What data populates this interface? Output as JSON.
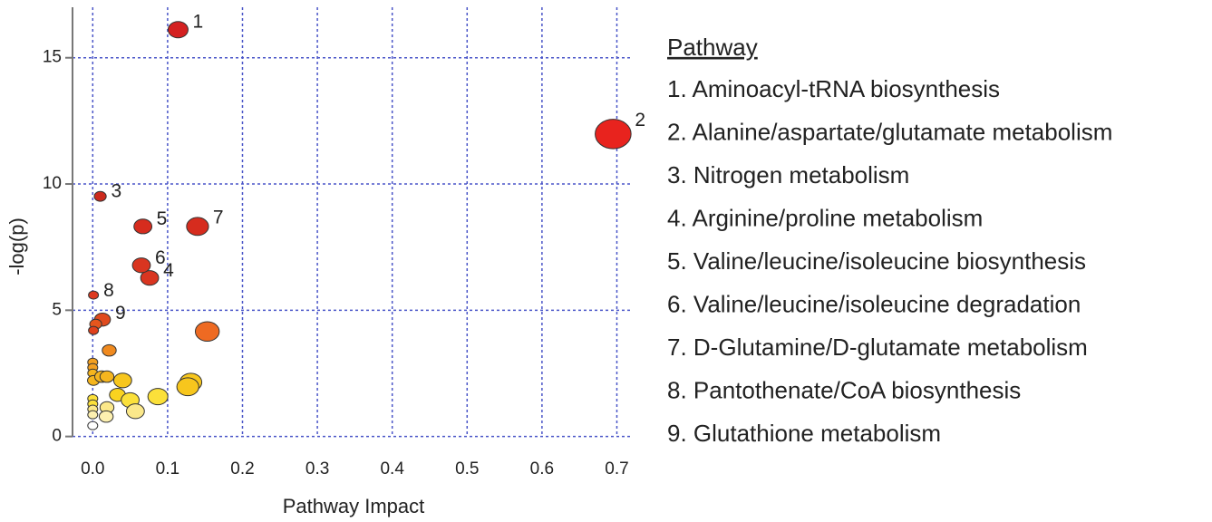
{
  "chart_data": {
    "type": "scatter",
    "xlabel": "Pathway Impact",
    "ylabel": "-log(p)",
    "xlim": [
      -0.027,
      0.72
    ],
    "ylim": [
      -0.3,
      17
    ],
    "xticks": [
      {
        "value": 0,
        "label": "0.0"
      },
      0.1,
      0.2,
      0.3,
      0.4,
      0.5,
      0.6,
      0.7
    ],
    "yticks": [
      0,
      5,
      10,
      15
    ],
    "grid": true,
    "grid_color": "#4a55c8",
    "x": [
      0.114,
      0.695,
      0.01,
      0.076,
      0.067,
      0.065,
      0.14,
      0.001,
      0.013,
      0.004,
      0.001,
      0.153,
      0.022,
      0,
      0,
      0,
      0.001,
      0.012,
      0.019,
      0.04,
      0.131,
      0.127,
      0.033,
      0.05,
      0.087,
      0,
      0,
      0.019,
      0.057,
      0,
      0.018,
      0,
      0
    ],
    "values": [
      16.11,
      11.98,
      9.51,
      6.28,
      8.32,
      6.78,
      8.32,
      5.6,
      4.63,
      4.45,
      4.2,
      4.16,
      3.41,
      2.94,
      2.73,
      2.51,
      2.22,
      2.37,
      2.37,
      2.22,
      2.15,
      1.97,
      1.65,
      1.44,
      1.58,
      1.5,
      1.29,
      1.15,
      1.0,
      1.08,
      0.79,
      0.86,
      0.43
    ],
    "sizes": [
      10,
      18,
      6,
      9,
      9,
      9,
      11,
      5,
      8,
      6,
      5,
      12,
      7,
      5,
      5,
      5,
      6,
      7,
      7,
      9,
      11,
      11,
      8,
      9,
      10,
      5,
      5,
      7,
      9,
      5,
      7,
      5,
      5
    ],
    "colors": [
      "#d42020",
      "#e8231e",
      "#cc2a1d",
      "#d93520",
      "#d62c1e",
      "#d93520",
      "#d62c1e",
      "#dd3a20",
      "#e04a1e",
      "#e5561d",
      "#e0401c",
      "#ee6a22",
      "#f08a1f",
      "#f3a020",
      "#f3a020",
      "#f5b51e",
      "#f5b51e",
      "#f5b51e",
      "#f5b51e",
      "#f7c61d",
      "#f7c61d",
      "#f7c61d",
      "#f9d31f",
      "#fbe03a",
      "#fbe03a",
      "#fbe03a",
      "#fbe03a",
      "#fbe88a",
      "#fbe88a",
      "#fbe88a",
      "#fdf0b0",
      "#fdf0b0",
      "#ffffff"
    ],
    "point_labels": [
      "1",
      "2",
      "3",
      "4",
      "5",
      "6",
      "7",
      "8",
      "9",
      null,
      null,
      null,
      null,
      null,
      null,
      null,
      null,
      null,
      null,
      null,
      null,
      null,
      null,
      null,
      null,
      null,
      null,
      null,
      null,
      null,
      null,
      null,
      null
    ],
    "legend_title": "Pathway",
    "legend_items": [
      "1. Aminoacyl-tRNA biosynthesis",
      "2. Alanine/aspartate/glutamate metabolism",
      "3. Nitrogen metabolism",
      "4. Arginine/proline metabolism",
      "5. Valine/leucine/isoleucine biosynthesis",
      "6. Valine/leucine/isoleucine degradation",
      "7. D-Glutamine/D-glutamate metabolism",
      "8. Pantothenate/CoA biosynthesis",
      "9. Glutathione metabolism"
    ]
  }
}
